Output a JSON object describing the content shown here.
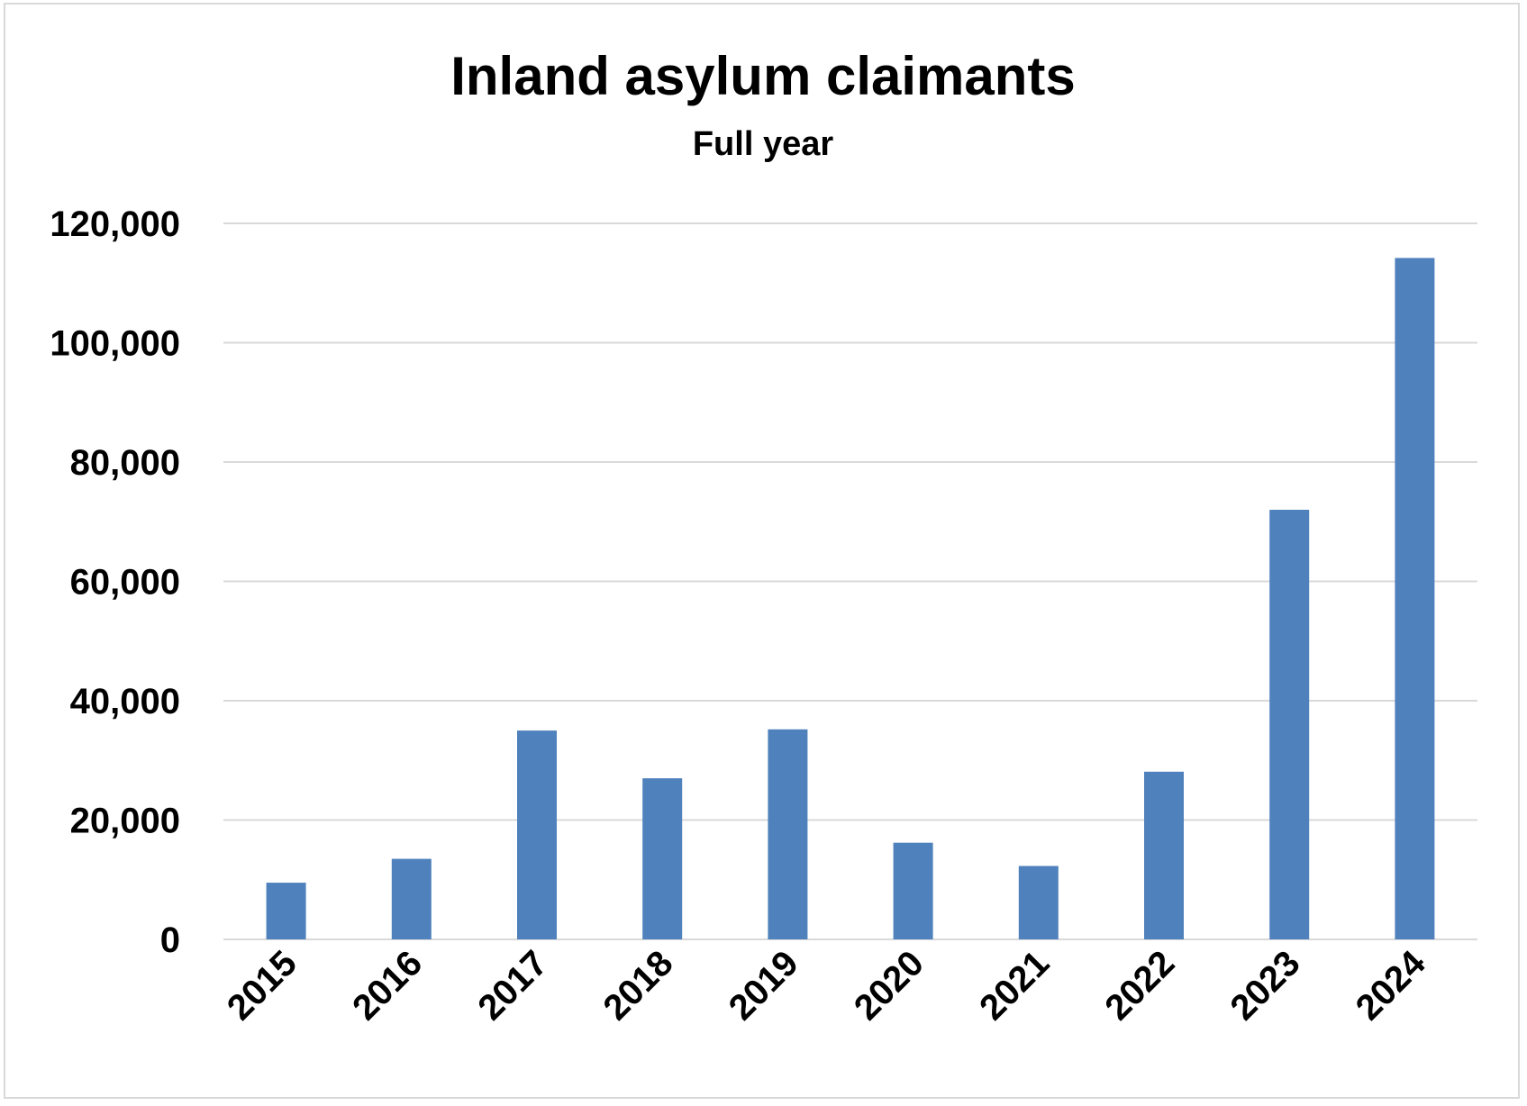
{
  "chart_data": {
    "type": "bar",
    "title": "Inland asylum claimants",
    "subtitle": "Full year",
    "xlabel": "",
    "ylabel": "",
    "categories": [
      "2015",
      "2016",
      "2017",
      "2018",
      "2019",
      "2020",
      "2021",
      "2022",
      "2023",
      "2024"
    ],
    "series": [
      {
        "values": [
          9500,
          13500,
          35000,
          27000,
          35200,
          16200,
          12300,
          28100,
          72000,
          114200
        ]
      }
    ],
    "ylim": [
      0,
      120000
    ],
    "yticks": [
      0,
      20000,
      40000,
      60000,
      80000,
      100000,
      120000
    ],
    "ytick_labels": [
      "0",
      "20,000",
      "40,000",
      "60,000",
      "80,000",
      "100,000",
      "120,000"
    ],
    "grid": true,
    "legend": "none",
    "colors": {
      "bar": "#4f81bd",
      "grid": "#d9d9d9",
      "border": "#d9d9d9",
      "text": "#000000"
    }
  }
}
